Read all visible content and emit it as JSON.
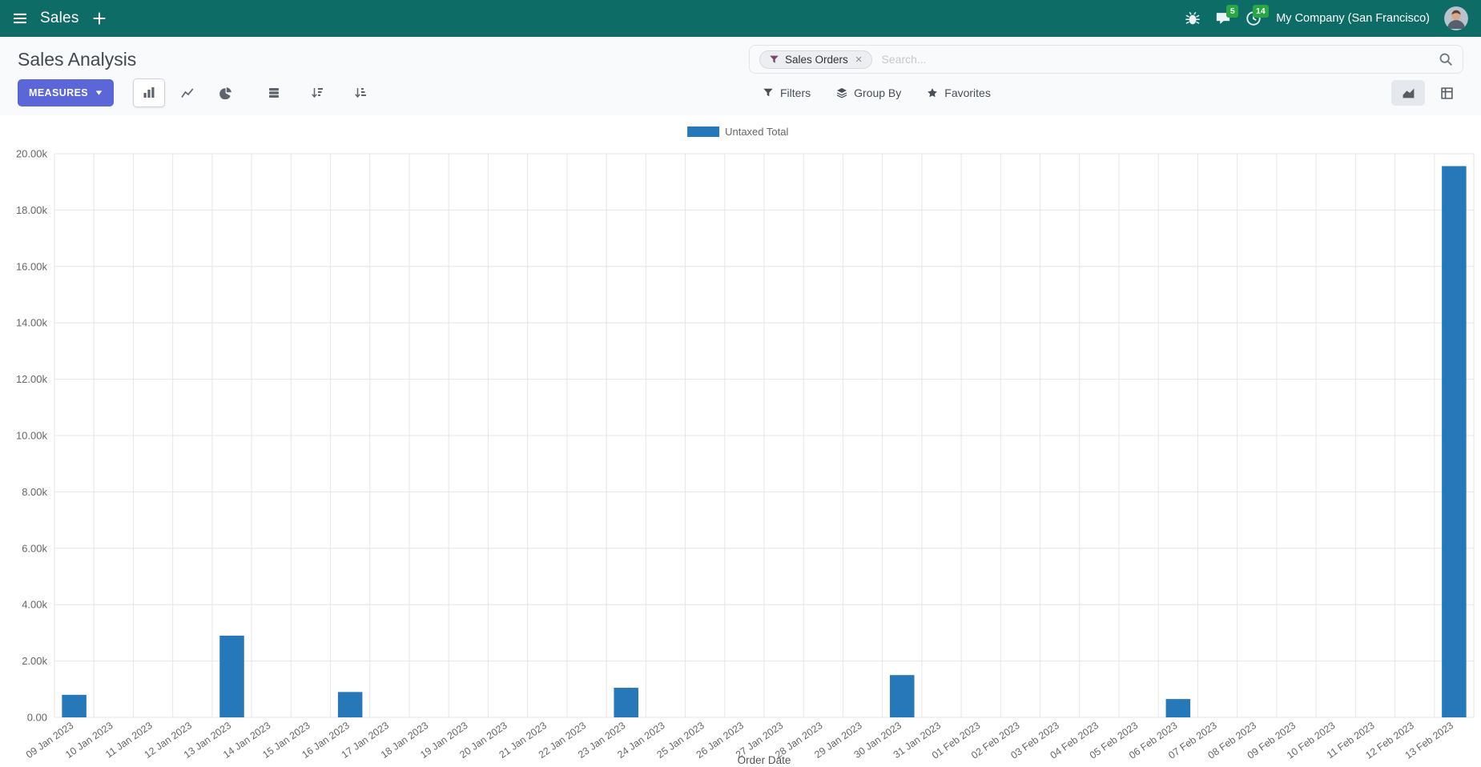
{
  "navbar": {
    "app_name": "Sales",
    "company": "My Company (San Francisco)",
    "messages_count": "5",
    "activities_count": "14"
  },
  "control_panel": {
    "title": "Sales Analysis",
    "search": {
      "facet_label": "Sales Orders",
      "placeholder": "Search...",
      "remove_symbol": "×"
    },
    "measures_label": "MEASURES",
    "filters_label": "Filters",
    "group_by_label": "Group By",
    "favorites_label": "Favorites"
  },
  "colors": {
    "navbar_bg": "#0e6c66",
    "badge_green": "#28a745",
    "primary_button": "#5b66d9",
    "bar_blue": "#2678b8",
    "grid": "#e6e6e6",
    "tick_text": "#666666"
  },
  "chart_data": {
    "type": "bar",
    "title": "",
    "legend_position": "top",
    "xlabel": "Order Date",
    "ylabel": "",
    "ylim": [
      0,
      20000
    ],
    "ytick_step": 2000,
    "ytick_labels": [
      "0.00",
      "2.00k",
      "4.00k",
      "6.00k",
      "8.00k",
      "10.00k",
      "12.00k",
      "14.00k",
      "16.00k",
      "18.00k",
      "20.00k"
    ],
    "grid": true,
    "categories": [
      "09 Jan 2023",
      "10 Jan 2023",
      "11 Jan 2023",
      "12 Jan 2023",
      "13 Jan 2023",
      "14 Jan 2023",
      "15 Jan 2023",
      "16 Jan 2023",
      "17 Jan 2023",
      "18 Jan 2023",
      "19 Jan 2023",
      "20 Jan 2023",
      "21 Jan 2023",
      "22 Jan 2023",
      "23 Jan 2023",
      "24 Jan 2023",
      "25 Jan 2023",
      "26 Jan 2023",
      "27 Jan 2023",
      "28 Jan 2023",
      "29 Jan 2023",
      "30 Jan 2023",
      "31 Jan 2023",
      "01 Feb 2023",
      "02 Feb 2023",
      "03 Feb 2023",
      "04 Feb 2023",
      "05 Feb 2023",
      "06 Feb 2023",
      "07 Feb 2023",
      "08 Feb 2023",
      "09 Feb 2023",
      "10 Feb 2023",
      "11 Feb 2023",
      "12 Feb 2023",
      "13 Feb 2023"
    ],
    "series": [
      {
        "name": "Untaxed Total",
        "color": "#2678b8",
        "values": [
          800,
          0,
          0,
          0,
          2900,
          0,
          0,
          900,
          0,
          0,
          0,
          0,
          0,
          0,
          1050,
          0,
          0,
          0,
          0,
          0,
          0,
          1500,
          0,
          0,
          0,
          0,
          0,
          0,
          650,
          0,
          0,
          0,
          0,
          0,
          0,
          19560
        ]
      }
    ]
  }
}
